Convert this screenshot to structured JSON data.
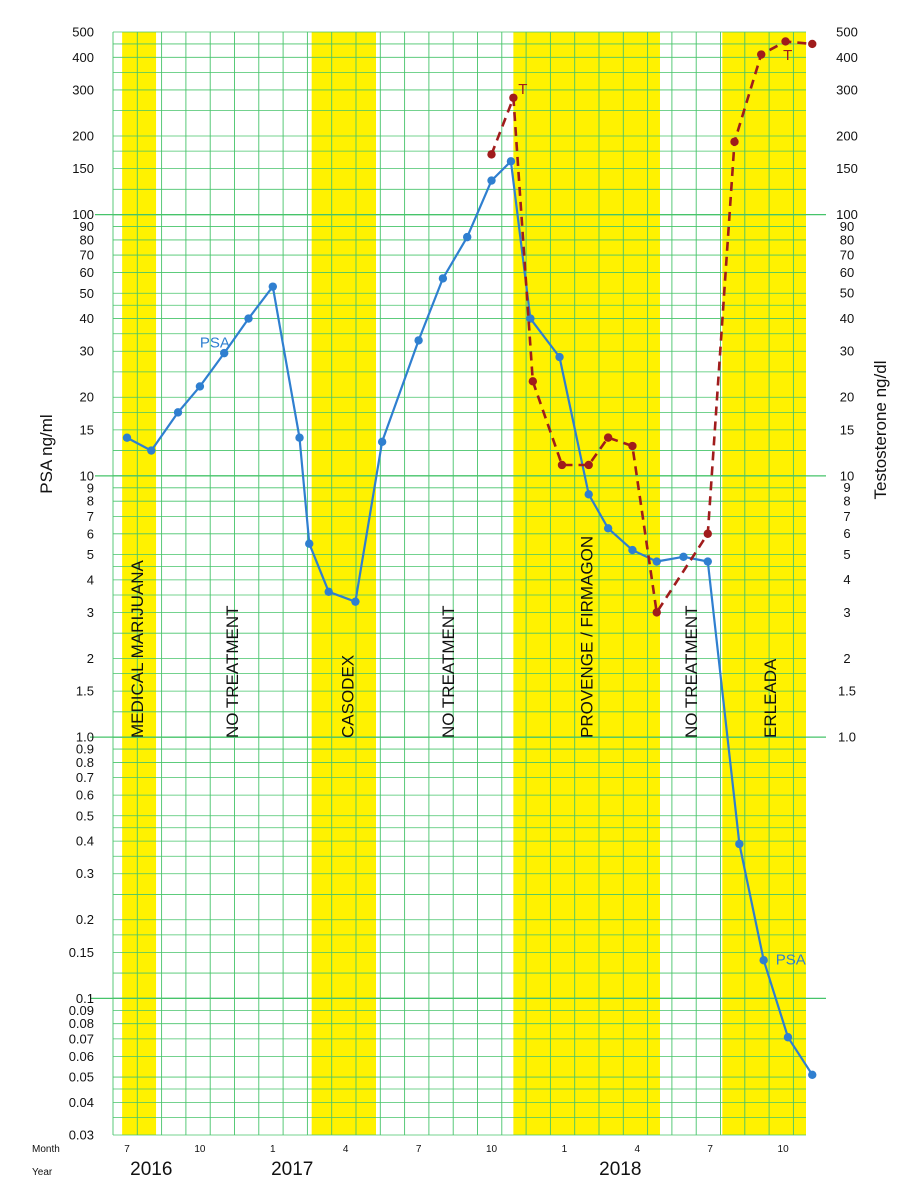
{
  "chart_data": {
    "type": "line",
    "y_left_label": "PSA ng/ml",
    "y_right_label": "Testosterone ng/dl",
    "y_left_scale": "log",
    "y_left_range": [
      0.03,
      500
    ],
    "y_left_ticks": [
      "0.03",
      "0.04",
      "0.05",
      "0.06",
      "0.07",
      "0.08",
      "0.09",
      "0.1",
      "0.15",
      "0.2",
      "0.3",
      "0.4",
      "0.5",
      "0.6",
      "0.7",
      "0.8",
      "0.9",
      "1.0",
      "1.5",
      "2",
      "3",
      "4",
      "5",
      "6",
      "7",
      "8",
      "9",
      "10",
      "15",
      "20",
      "30",
      "40",
      "50",
      "60",
      "70",
      "80",
      "90",
      "100",
      "150",
      "200",
      "300",
      "400",
      "500"
    ],
    "y_right_range": [
      1.0,
      500
    ],
    "y_right_ticks": [
      "1.0",
      "1.5",
      "2",
      "3",
      "4",
      "5",
      "6",
      "7",
      "8",
      "9",
      "10",
      "15",
      "20",
      "30",
      "40",
      "50",
      "60",
      "70",
      "80",
      "90",
      "100",
      "150",
      "200",
      "300",
      "400",
      "500"
    ],
    "month_row_label": "Month",
    "year_row_label": "Year",
    "month_labels": [
      {
        "label": "7",
        "m": 0
      },
      {
        "label": "10",
        "m": 3
      },
      {
        "label": "1",
        "m": 6
      },
      {
        "label": "4",
        "m": 9
      },
      {
        "label": "7",
        "m": 12
      },
      {
        "label": "10",
        "m": 15
      },
      {
        "label": "1",
        "m": 18
      },
      {
        "label": "4",
        "m": 21
      },
      {
        "label": "7",
        "m": 24
      },
      {
        "label": "10",
        "m": 27
      }
    ],
    "years": [
      {
        "label": "2016",
        "m": 1
      },
      {
        "label": "2017",
        "m": 6.8
      },
      {
        "label": "2018",
        "m": 20.3
      }
    ],
    "bands": [
      {
        "label": "MEDICAL MARIJUANA",
        "start": -0.2,
        "end": 1.2,
        "color": "#fff200"
      },
      {
        "label": "NO TREATMENT",
        "start": 1.2,
        "end": 7.6,
        "color": "#ffffff"
      },
      {
        "label": "CASODEX",
        "start": 7.6,
        "end": 10.7,
        "color": "#fff200"
      },
      {
        "label": "NO TREATMENT",
        "start": 10.7,
        "end": 15.9,
        "color": "#ffffff"
      },
      {
        "label": "PROVENGE / FIRMAGON",
        "start": 15.9,
        "end": 22.1,
        "color": "#fff200"
      },
      {
        "label": "NO TREATMENT",
        "start": 22.1,
        "end": 24.5,
        "color": "#ffffff"
      },
      {
        "label": "ERLEADA",
        "start": 24.5,
        "end": 28.6,
        "color": "#fff200"
      }
    ],
    "series": [
      {
        "name": "PSA",
        "axis": "left",
        "color": "#2f7fd0",
        "dash": "",
        "points": [
          {
            "m": 0.0,
            "y": 14
          },
          {
            "m": 1.0,
            "y": 12.5
          },
          {
            "m": 2.1,
            "y": 17.5
          },
          {
            "m": 3.0,
            "y": 22
          },
          {
            "m": 4.0,
            "y": 29.5
          },
          {
            "m": 5.0,
            "y": 40
          },
          {
            "m": 6.0,
            "y": 53
          },
          {
            "m": 7.1,
            "y": 14
          },
          {
            "m": 7.5,
            "y": 5.5
          },
          {
            "m": 8.3,
            "y": 3.6
          },
          {
            "m": 9.4,
            "y": 3.3
          },
          {
            "m": 10.5,
            "y": 13.5
          },
          {
            "m": 12.0,
            "y": 33
          },
          {
            "m": 13.0,
            "y": 57
          },
          {
            "m": 14.0,
            "y": 82
          },
          {
            "m": 15.0,
            "y": 135
          },
          {
            "m": 15.8,
            "y": 160
          },
          {
            "m": 16.6,
            "y": 40
          },
          {
            "m": 17.8,
            "y": 28.5
          },
          {
            "m": 19.0,
            "y": 8.5
          },
          {
            "m": 19.8,
            "y": 6.3
          },
          {
            "m": 20.8,
            "y": 5.2
          },
          {
            "m": 21.8,
            "y": 4.7
          },
          {
            "m": 22.9,
            "y": 4.9
          },
          {
            "m": 23.9,
            "y": 4.7
          },
          {
            "m": 25.2,
            "y": 0.39
          },
          {
            "m": 26.2,
            "y": 0.14
          },
          {
            "m": 27.2,
            "y": 0.071
          },
          {
            "m": 28.2,
            "y": 0.051
          }
        ]
      },
      {
        "name": "T",
        "axis": "right",
        "color": "#a01c1c",
        "dash": "9,6",
        "points": [
          {
            "m": 15.0,
            "y": 170
          },
          {
            "m": 15.9,
            "y": 280
          },
          {
            "m": 16.7,
            "y": 23
          },
          {
            "m": 17.9,
            "y": 11
          },
          {
            "m": 19.0,
            "y": 11
          },
          {
            "m": 19.8,
            "y": 14
          },
          {
            "m": 20.8,
            "y": 13
          },
          {
            "m": 21.8,
            "y": 3
          },
          {
            "m": 23.9,
            "y": 6
          },
          {
            "m": 25.0,
            "y": 190
          },
          {
            "m": 26.1,
            "y": 410
          },
          {
            "m": 27.1,
            "y": 460
          },
          {
            "m": 28.2,
            "y": 450
          }
        ]
      }
    ],
    "annotations": [
      {
        "text": "PSA",
        "series": "PSA",
        "m": 3.0,
        "y": 31,
        "axis": "left"
      },
      {
        "text": "T",
        "series": "T",
        "m": 16.1,
        "y": 290,
        "axis": "right"
      },
      {
        "text": "T",
        "series": "T",
        "m": 27.0,
        "y": 390,
        "axis": "right"
      },
      {
        "text": "PSA",
        "series": "PSA",
        "m": 26.7,
        "y": 0.135,
        "axis": "left"
      }
    ]
  }
}
